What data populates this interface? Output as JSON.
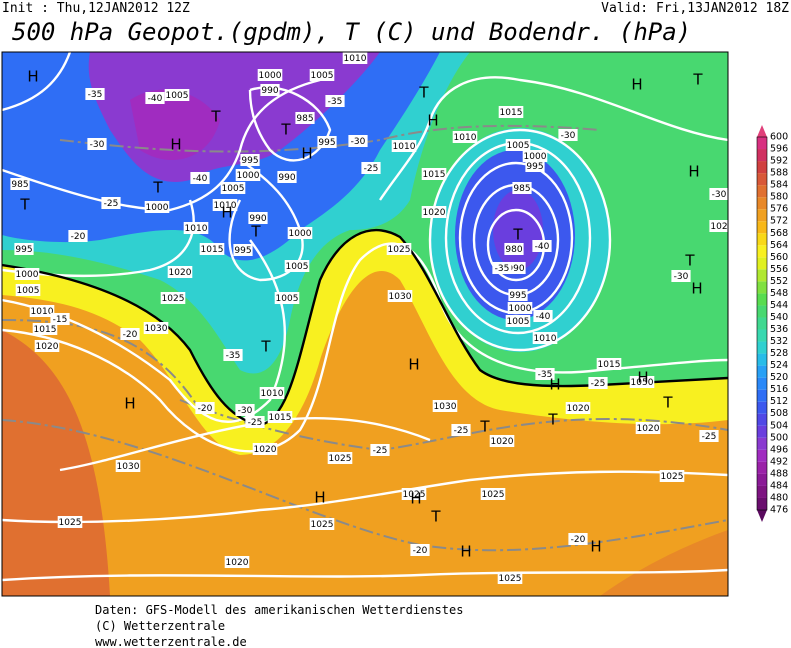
{
  "header": {
    "init": "Init : Thu,12JAN2012 12Z",
    "valid": "Valid: Fri,13JAN2012 18Z",
    "title": "500 hPa Geopot.(gpdm), T (C) und Bodendr. (hPa)"
  },
  "footer": {
    "lines": [
      "Daten: GFS-Modell des amerikanischen Wetterdienstes",
      "(C) Wetterzentrale",
      "www.wetterzentrale.de"
    ]
  },
  "colorbar": {
    "ticks": [
      476,
      480,
      484,
      488,
      492,
      496,
      500,
      504,
      508,
      512,
      516,
      520,
      524,
      528,
      532,
      536,
      540,
      544,
      548,
      552,
      556,
      560,
      564,
      568,
      572,
      576,
      580,
      584,
      588,
      592,
      596,
      600
    ],
    "colors": [
      "#6a0e6e",
      "#7d1481",
      "#8a1a96",
      "#9a22a8",
      "#a02cc0",
      "#8a3ad0",
      "#6a3ede",
      "#5048e6",
      "#3c58ee",
      "#2f6ef5",
      "#2a88f8",
      "#28a0f5",
      "#28bce8",
      "#30d0d0",
      "#38d8b0",
      "#40d890",
      "#48d870",
      "#58dc50",
      "#80e040",
      "#b0e830",
      "#e0f020",
      "#f8f020",
      "#f8d818",
      "#f8b818",
      "#f0a020",
      "#e88828",
      "#e07030",
      "#d85838",
      "#d04040",
      "#d03060",
      "#d83080"
    ],
    "low_color": "#5a0a5e",
    "high_color": "#e0407a"
  },
  "map": {
    "isobar_labels": [
      "1010",
      "1000",
      "1005",
      "1005",
      "990",
      "985",
      "995",
      "1010",
      "995",
      "1000",
      "990",
      "1005",
      "985",
      "1000",
      "1010",
      "990",
      "1010",
      "1000",
      "995",
      "995",
      "1015",
      "1005",
      "1000",
      "1005",
      "1020",
      "1025",
      "1005",
      "1010",
      "1015",
      "1030",
      "1020",
      "1015",
      "1020",
      "1025",
      "1030",
      "1015",
      "1010",
      "1005",
      "1000",
      "995",
      "985",
      "980",
      "990",
      "995",
      "1000",
      "1005",
      "1010",
      "1015",
      "1010",
      "1015",
      "1030",
      "1020",
      "1025",
      "1020",
      "1020",
      "1020",
      "1030",
      "1025",
      "1025",
      "1025",
      "1025",
      "1025",
      "1020",
      "1025",
      "1050",
      "102"
    ],
    "temperature_labels": [
      "-35",
      "-40",
      "-35",
      "-30",
      "-40",
      "-30",
      "-25",
      "-25",
      "-20",
      "-30",
      "-35",
      "-40",
      "-40",
      "-15",
      "-20",
      "-35",
      "-20",
      "-30",
      "-35",
      "-25",
      "-25",
      "-25",
      "-25",
      "-20",
      "-20",
      "-30",
      "-30",
      "-25"
    ],
    "pressure_centers": [
      "H",
      "T",
      "H",
      "T",
      "T",
      "H",
      "H",
      "T",
      "T",
      "H",
      "T",
      "T",
      "H",
      "T",
      "H",
      "T",
      "H",
      "T",
      "H",
      "H",
      "T",
      "T",
      "H",
      "H",
      "T",
      "H",
      "H",
      "T",
      "H",
      "H"
    ]
  }
}
